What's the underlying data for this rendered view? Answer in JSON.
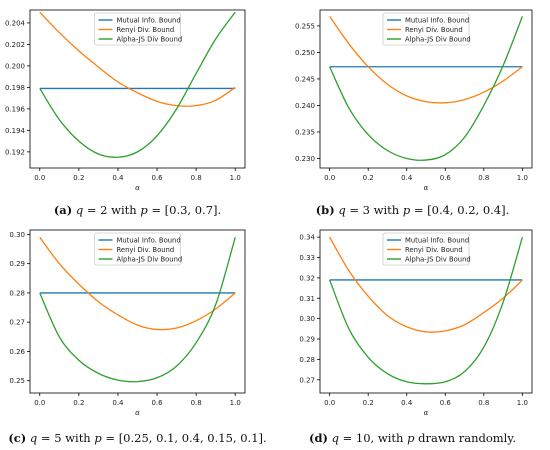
{
  "captions": [
    {
      "label": "(a)",
      "pre": "q",
      "mid": " = 2 with ",
      "pvar": "p",
      "post": " = [0.3, 0.7]."
    },
    {
      "label": "(b)",
      "pre": "q",
      "mid": " = 3 with ",
      "pvar": "p",
      "post": " = [0.4, 0.2, 0.4]."
    },
    {
      "label": "(c)",
      "pre": "q",
      "mid": " = 5 with ",
      "pvar": "p",
      "post": " = [0.25, 0.1, 0.4, 0.15, 0.1]."
    },
    {
      "label": "(d)",
      "pre": "q",
      "mid": " = 10, with ",
      "pvar": "p",
      "post": " drawn randomly."
    }
  ],
  "chart_data": [
    {
      "type": "line",
      "xlabel": "α",
      "xlim": [
        -0.05,
        1.05
      ],
      "ylim": [
        0.1905,
        0.2052
      ],
      "xticks": [
        "0.0",
        "0.2",
        "0.4",
        "0.6",
        "0.8",
        "1.0"
      ],
      "yticks": [
        "0.192",
        "0.194",
        "0.196",
        "0.198",
        "0.200",
        "0.202",
        "0.204"
      ],
      "legend": "top-center",
      "series": [
        {
          "name": "Mutual Info. Bound",
          "color": "#1f77b4",
          "x": [
            0.0,
            1.0
          ],
          "y": [
            0.1979,
            0.1979
          ]
        },
        {
          "name": "Renyi Div. Bound",
          "color": "#ff7f0e",
          "x": [
            0.0,
            0.1,
            0.2,
            0.3,
            0.4,
            0.5,
            0.6,
            0.7,
            0.8,
            0.9,
            1.0
          ],
          "y": [
            0.205,
            0.2031,
            0.2014,
            0.1999,
            0.1985,
            0.1975,
            0.1967,
            0.1963,
            0.1963,
            0.1968,
            0.198
          ]
        },
        {
          "name": "Alpha-JS Div Bound",
          "color": "#2ca02c",
          "x": [
            0.0,
            0.1,
            0.2,
            0.3,
            0.4,
            0.5,
            0.6,
            0.7,
            0.8,
            0.9,
            1.0
          ],
          "y": [
            0.1979,
            0.195,
            0.193,
            0.1918,
            0.1915,
            0.192,
            0.1935,
            0.196,
            0.1993,
            0.2025,
            0.205
          ]
        }
      ]
    },
    {
      "type": "line",
      "xlabel": "α",
      "xlim": [
        -0.05,
        1.05
      ],
      "ylim": [
        0.2282,
        0.258
      ],
      "xticks": [
        "0.0",
        "0.2",
        "0.4",
        "0.6",
        "0.8",
        "1.0"
      ],
      "yticks": [
        "0.230",
        "0.235",
        "0.240",
        "0.245",
        "0.250",
        "0.255"
      ],
      "legend": "top-center",
      "series": [
        {
          "name": "Mutual Info. Bound",
          "color": "#1f77b4",
          "x": [
            0.0,
            1.0
          ],
          "y": [
            0.2473,
            0.2473
          ]
        },
        {
          "name": "Renyi Div. Bound",
          "color": "#ff7f0e",
          "x": [
            0.0,
            0.1,
            0.2,
            0.3,
            0.4,
            0.5,
            0.6,
            0.7,
            0.8,
            0.9,
            1.0
          ],
          "y": [
            0.2568,
            0.2516,
            0.2473,
            0.244,
            0.2418,
            0.2407,
            0.2405,
            0.2411,
            0.2425,
            0.2446,
            0.2473
          ]
        },
        {
          "name": "Alpha-JS Div Bound",
          "color": "#2ca02c",
          "x": [
            0.0,
            0.1,
            0.2,
            0.3,
            0.4,
            0.5,
            0.6,
            0.7,
            0.8,
            0.9,
            1.0
          ],
          "y": [
            0.2473,
            0.2395,
            0.2345,
            0.2315,
            0.23,
            0.2297,
            0.2307,
            0.234,
            0.24,
            0.2475,
            0.2568
          ]
        }
      ]
    },
    {
      "type": "line",
      "xlabel": "α",
      "xlim": [
        -0.05,
        1.05
      ],
      "ylim": [
        0.2458,
        0.3015
      ],
      "xticks": [
        "0.0",
        "0.2",
        "0.4",
        "0.6",
        "0.8",
        "1.0"
      ],
      "yticks": [
        "0.25",
        "0.26",
        "0.27",
        "0.28",
        "0.29",
        "0.30"
      ],
      "legend": "top-center",
      "series": [
        {
          "name": "Mutual Info. Bound",
          "color": "#1f77b4",
          "x": [
            0.0,
            1.0
          ],
          "y": [
            0.28,
            0.28
          ]
        },
        {
          "name": "Renyi Div. Bound",
          "color": "#ff7f0e",
          "x": [
            0.0,
            0.1,
            0.2,
            0.3,
            0.4,
            0.5,
            0.6,
            0.7,
            0.8,
            0.9,
            1.0
          ],
          "y": [
            0.299,
            0.29,
            0.283,
            0.277,
            0.2725,
            0.269,
            0.2675,
            0.268,
            0.2705,
            0.2745,
            0.28
          ]
        },
        {
          "name": "Alpha-JS Div Bound",
          "color": "#2ca02c",
          "x": [
            0.0,
            0.1,
            0.2,
            0.3,
            0.4,
            0.5,
            0.6,
            0.7,
            0.8,
            0.9,
            1.0
          ],
          "y": [
            0.28,
            0.265,
            0.257,
            0.2525,
            0.2502,
            0.2497,
            0.251,
            0.255,
            0.263,
            0.276,
            0.299
          ]
        }
      ]
    },
    {
      "type": "line",
      "xlabel": "α",
      "xlim": [
        -0.05,
        1.05
      ],
      "ylim": [
        0.2635,
        0.3435
      ],
      "xticks": [
        "0.0",
        "0.2",
        "0.4",
        "0.6",
        "0.8",
        "1.0"
      ],
      "yticks": [
        "0.27",
        "0.28",
        "0.29",
        "0.30",
        "0.31",
        "0.32",
        "0.33",
        "0.34"
      ],
      "legend": "top-center",
      "series": [
        {
          "name": "Mutual Info. Bound",
          "color": "#1f77b4",
          "x": [
            0.0,
            1.0
          ],
          "y": [
            0.319,
            0.319
          ]
        },
        {
          "name": "Renyi Div. Bound",
          "color": "#ff7f0e",
          "x": [
            0.0,
            0.1,
            0.2,
            0.3,
            0.4,
            0.5,
            0.6,
            0.7,
            0.8,
            0.9,
            1.0
          ],
          "y": [
            0.34,
            0.3235,
            0.311,
            0.3015,
            0.296,
            0.2935,
            0.294,
            0.297,
            0.303,
            0.31,
            0.319
          ]
        },
        {
          "name": "Alpha-JS Div Bound",
          "color": "#2ca02c",
          "x": [
            0.0,
            0.1,
            0.2,
            0.3,
            0.4,
            0.5,
            0.6,
            0.7,
            0.8,
            0.9,
            1.0
          ],
          "y": [
            0.319,
            0.295,
            0.281,
            0.273,
            0.269,
            0.268,
            0.269,
            0.274,
            0.286,
            0.308,
            0.34
          ]
        }
      ]
    }
  ]
}
